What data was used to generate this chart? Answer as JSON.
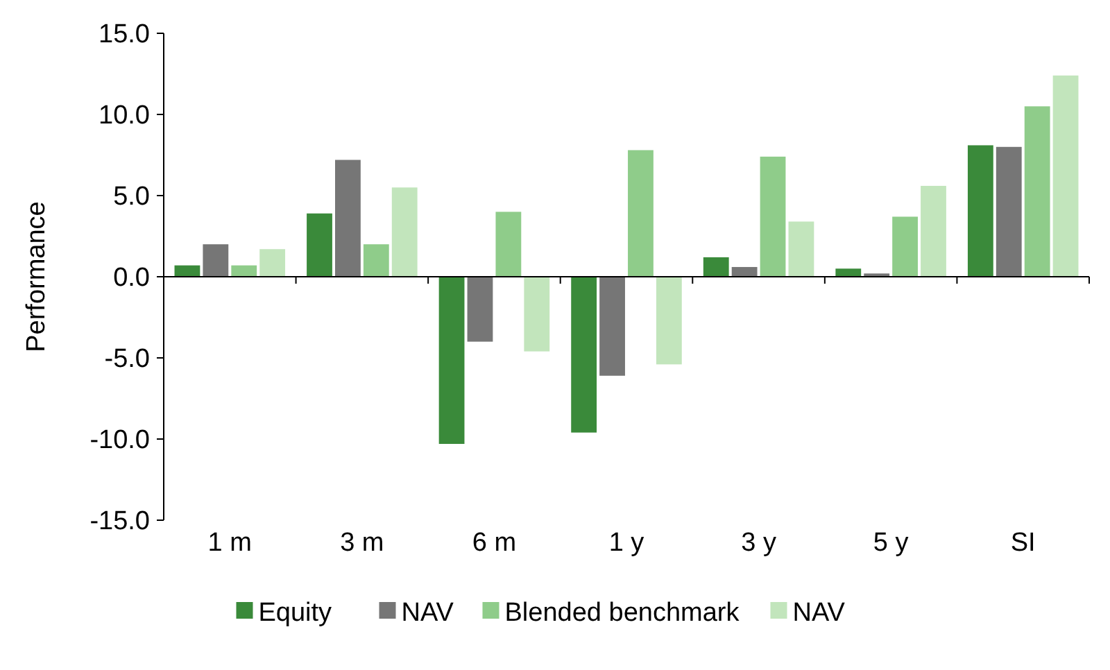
{
  "chart_data": {
    "type": "bar",
    "ylabel": "Performance",
    "categories": [
      "1 m",
      "3 m",
      "6 m",
      "1 y",
      "3 y",
      "5 y",
      "SI"
    ],
    "series": [
      {
        "name": "Equity",
        "color": "#3a8a3a",
        "values": [
          0.7,
          3.9,
          -10.3,
          -9.6,
          1.2,
          0.5,
          8.1
        ]
      },
      {
        "name": "NAV",
        "color": "#767676",
        "values": [
          2.0,
          7.2,
          -4.0,
          -6.1,
          0.6,
          0.2,
          8.0
        ]
      },
      {
        "name": "Blended benchmark",
        "color": "#8fcc8a",
        "values": [
          0.7,
          2.0,
          4.0,
          7.8,
          7.4,
          3.7,
          10.5
        ]
      },
      {
        "name": "NAV",
        "color": "#c2e5bc",
        "values": [
          1.7,
          5.5,
          -4.6,
          -5.4,
          3.4,
          5.6,
          12.4
        ]
      }
    ],
    "ylim": [
      -15,
      15
    ],
    "yticks": [
      {
        "value": -15,
        "label": "-15.0"
      },
      {
        "value": -10,
        "label": "-10.0"
      },
      {
        "value": -5,
        "label": "-5.0"
      },
      {
        "value": 0,
        "label": "0.0"
      },
      {
        "value": 5,
        "label": "5.0"
      },
      {
        "value": 10,
        "label": "10.0"
      },
      {
        "value": 15,
        "label": "15.0"
      }
    ],
    "legend": "bottom"
  }
}
